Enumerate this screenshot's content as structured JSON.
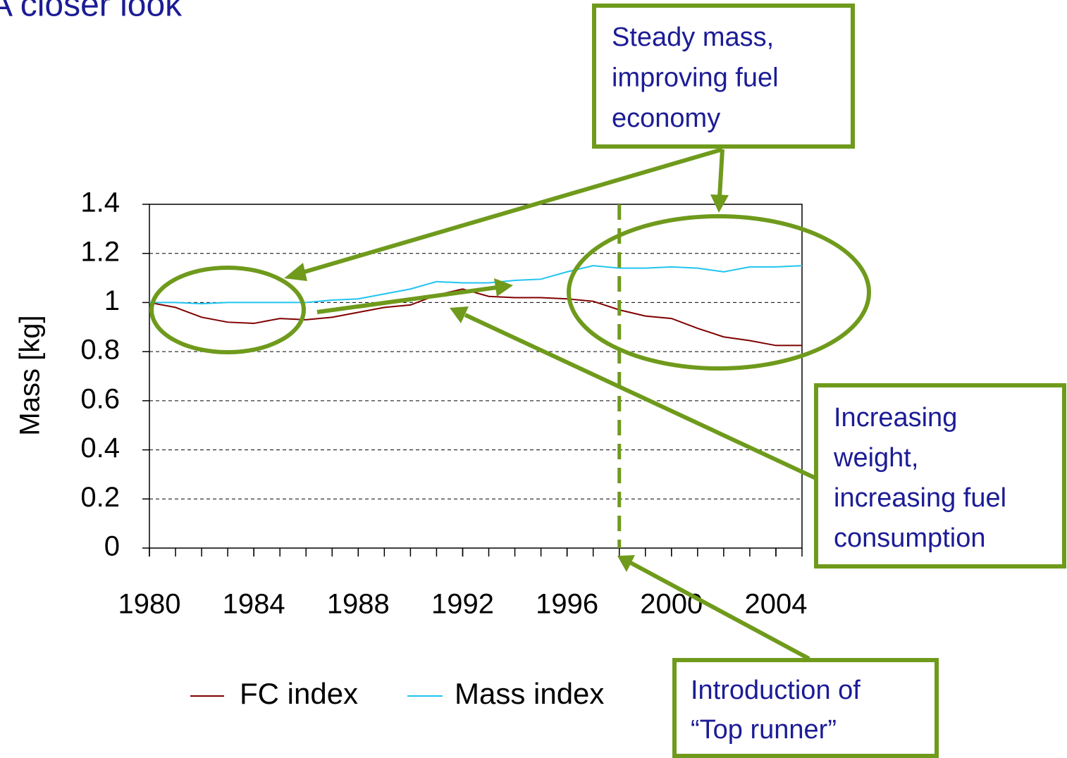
{
  "chart_data": {
    "type": "line",
    "title": "A closer look",
    "y_label": "Mass [kg]",
    "x": [
      1980,
      1981,
      1982,
      1983,
      1984,
      1985,
      1986,
      1987,
      1988,
      1989,
      1990,
      1991,
      1992,
      1993,
      1994,
      1995,
      1996,
      1997,
      1998,
      1999,
      2000,
      2001,
      2002,
      2003,
      2004,
      2005
    ],
    "series": [
      {
        "name": "FC index",
        "color": "#800000",
        "values": [
          1.0,
          0.98,
          0.94,
          0.92,
          0.915,
          0.935,
          0.93,
          0.94,
          0.96,
          0.98,
          0.99,
          1.03,
          1.055,
          1.025,
          1.02,
          1.02,
          1.015,
          1.005,
          0.97,
          0.945,
          0.935,
          0.895,
          0.86,
          0.845,
          0.825,
          0.825
        ]
      },
      {
        "name": "Mass index",
        "color": "#22c4f0",
        "values": [
          1.0,
          1.0,
          0.995,
          1.0,
          1.0,
          1.0,
          1.0,
          1.01,
          1.015,
          1.035,
          1.055,
          1.085,
          1.08,
          1.08,
          1.09,
          1.095,
          1.125,
          1.15,
          1.14,
          1.14,
          1.145,
          1.14,
          1.125,
          1.145,
          1.145,
          1.15
        ]
      }
    ],
    "xlim": [
      1980,
      2005
    ],
    "xticks": [
      1980,
      1984,
      1988,
      1992,
      1996,
      2000,
      2004
    ],
    "ylim": [
      0,
      1.4
    ],
    "yticks": [
      0,
      0.2,
      0.4,
      0.6,
      0.8,
      1,
      1.2,
      1.4
    ],
    "grid": true,
    "vline": 1998,
    "annotations": [
      {
        "lines": [
          "Steady mass,",
          "improving fuel",
          "economy"
        ]
      },
      {
        "lines": [
          "Increasing",
          "weight,",
          "increasing fuel",
          "consumption"
        ]
      },
      {
        "lines": [
          "Introduction of",
          "“Top runner”"
        ]
      }
    ]
  }
}
